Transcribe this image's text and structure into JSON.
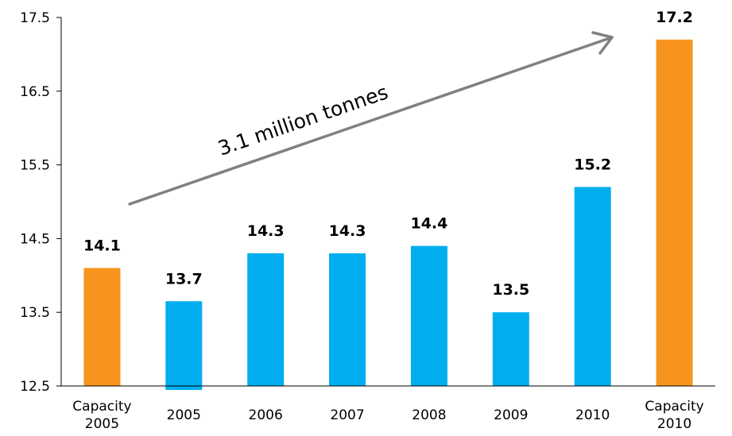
{
  "chart_data": {
    "type": "bar",
    "categories": [
      "Capacity\n2005",
      "2005",
      "2006",
      "2007",
      "2008",
      "2009",
      "2010",
      "Capacity\n2010"
    ],
    "values": [
      14.1,
      13.65,
      14.3,
      14.3,
      14.4,
      13.5,
      15.2,
      17.2
    ],
    "data_labels": [
      "14.1",
      "13.7",
      "14.3",
      "14.3",
      "14.4",
      "13.5",
      "15.2",
      "17.2"
    ],
    "bar_colors": [
      "#F7941D",
      "#00AEEF",
      "#00AEEF",
      "#00AEEF",
      "#00AEEF",
      "#00AEEF",
      "#00AEEF",
      "#F7941D"
    ],
    "ylim": [
      12.5,
      17.5
    ],
    "yticks": [
      "12.5",
      "13.5",
      "14.5",
      "15.5",
      "16.5",
      "17.5"
    ],
    "grid": false,
    "annotation": {
      "text": "3.1 million tonnes",
      "arrow_color": "#808080"
    }
  }
}
